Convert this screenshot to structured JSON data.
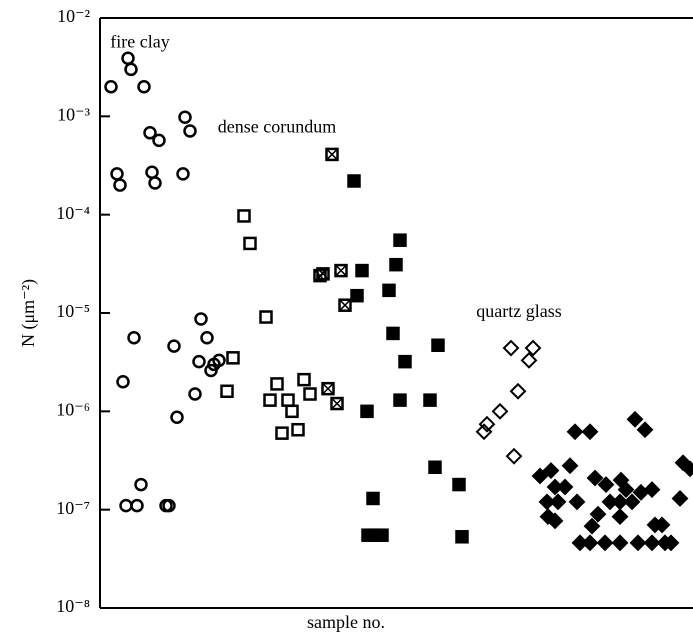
{
  "chart_data": {
    "type": "scatter",
    "x_label": "sample no.",
    "y_label": "N (μm⁻²)",
    "log_y": true,
    "xlim": [
      0,
      593
    ],
    "ylim": [
      1e-08,
      0.01
    ],
    "yticks": [
      {
        "value": 0.01,
        "label": "10⁻²"
      },
      {
        "value": 0.001,
        "label": "10⁻³"
      },
      {
        "value": 0.0001,
        "label": "10⁻⁴"
      },
      {
        "value": 1e-05,
        "label": "10⁻⁵"
      },
      {
        "value": 1e-06,
        "label": "10⁻⁶"
      },
      {
        "value": 1e-07,
        "label": "10⁻⁷"
      },
      {
        "value": 1e-08,
        "label": "10⁻⁸"
      }
    ],
    "annotations": [
      {
        "text": "fire clay",
        "x": 40,
        "y": 0.0055
      },
      {
        "text": "dense corundum",
        "x": 177,
        "y": 0.00075
      },
      {
        "text": "quartz glass",
        "x": 419,
        "y": 1e-05
      }
    ],
    "series": [
      {
        "marker": "circle",
        "color": "#000000",
        "x": [
          11,
          28,
          31,
          44,
          50,
          59,
          52,
          55,
          17,
          20,
          85,
          90,
          83,
          34,
          23,
          101,
          107,
          74,
          99,
          114,
          119,
          111,
          95,
          77,
          41,
          26,
          37,
          66,
          69
        ],
        "values": [
          0.002,
          0.0039,
          0.003,
          0.002,
          0.00068,
          0.00057,
          0.00027,
          0.00021,
          0.00026,
          0.0002,
          0.00098,
          0.00071,
          0.00026,
          5.6e-06,
          2e-06,
          8.7e-06,
          5.6e-06,
          4.6e-06,
          3.2e-06,
          3e-06,
          3.3e-06,
          2.6e-06,
          1.5e-06,
          8.7e-07,
          1.8e-07,
          1.1e-07,
          1.1e-07,
          1.1e-07,
          1.1e-07
        ]
      },
      {
        "marker": "square",
        "color": "#000000",
        "x": [
          144,
          150,
          166,
          133,
          127,
          177,
          170,
          188,
          192,
          204,
          210,
          182,
          198
        ],
        "values": [
          9.7e-05,
          5.1e-05,
          9.1e-06,
          3.5e-06,
          1.6e-06,
          1.9e-06,
          1.3e-06,
          1.3e-06,
          1e-06,
          2.1e-06,
          1.5e-06,
          6e-07,
          6.5e-07
        ]
      },
      {
        "marker": "square-cross",
        "color": "#000000",
        "x": [
          232,
          220,
          223,
          241,
          245,
          228,
          237
        ],
        "values": [
          0.00041,
          2.4e-05,
          2.5e-05,
          2.7e-05,
          1.2e-05,
          1.7e-06,
          1.2e-06
        ]
      },
      {
        "marker": "square-filled",
        "color": "#000000",
        "x": [
          254,
          300,
          262,
          257,
          296,
          289,
          293,
          305,
          338,
          267,
          300,
          330,
          335,
          359,
          273,
          362,
          268,
          275,
          282
        ],
        "values": [
          0.00022,
          5.5e-05,
          2.7e-05,
          1.5e-05,
          3.1e-05,
          1.7e-05,
          6.2e-06,
          3.2e-06,
          4.7e-06,
          1e-06,
          1.3e-06,
          1.3e-06,
          2.7e-07,
          1.8e-07,
          1.3e-07,
          5.3e-08,
          5.5e-08,
          5.5e-08,
          5.5e-08
        ]
      },
      {
        "marker": "diamond",
        "color": "#000000",
        "x": [
          411,
          433,
          429,
          418,
          400,
          387,
          384,
          414
        ],
        "values": [
          4.4e-06,
          4.4e-06,
          3.3e-06,
          1.6e-06,
          1e-06,
          7.4e-07,
          6.2e-07,
          3.5e-07
        ]
      },
      {
        "marker": "diamond-filled",
        "color": "#000000",
        "x": [
          475,
          490,
          535,
          545,
          440,
          451,
          470,
          455,
          465,
          447,
          458,
          477,
          448,
          455,
          495,
          506,
          521,
          510,
          520,
          532,
          526,
          541,
          552,
          580,
          583,
          590,
          492,
          498,
          520,
          555,
          562,
          480,
          490,
          505,
          520,
          538,
          552,
          565,
          571
        ],
        "values": [
          6.2e-07,
          6.2e-07,
          8.3e-07,
          6.5e-07,
          2.2e-07,
          2.5e-07,
          2.8e-07,
          1.7e-07,
          1.7e-07,
          1.2e-07,
          1.2e-07,
          1.2e-07,
          8.5e-08,
          7.7e-08,
          2.1e-07,
          1.8e-07,
          2e-07,
          1.2e-07,
          1.2e-07,
          1.2e-07,
          1.6e-07,
          1.5e-07,
          1.6e-07,
          1.3e-07,
          3e-07,
          2.6e-07,
          6.8e-08,
          9e-08,
          8.5e-08,
          7e-08,
          7e-08,
          4.6e-08,
          4.6e-08,
          4.6e-08,
          4.6e-08,
          4.6e-08,
          4.6e-08,
          4.6e-08,
          4.6e-08
        ]
      }
    ]
  }
}
